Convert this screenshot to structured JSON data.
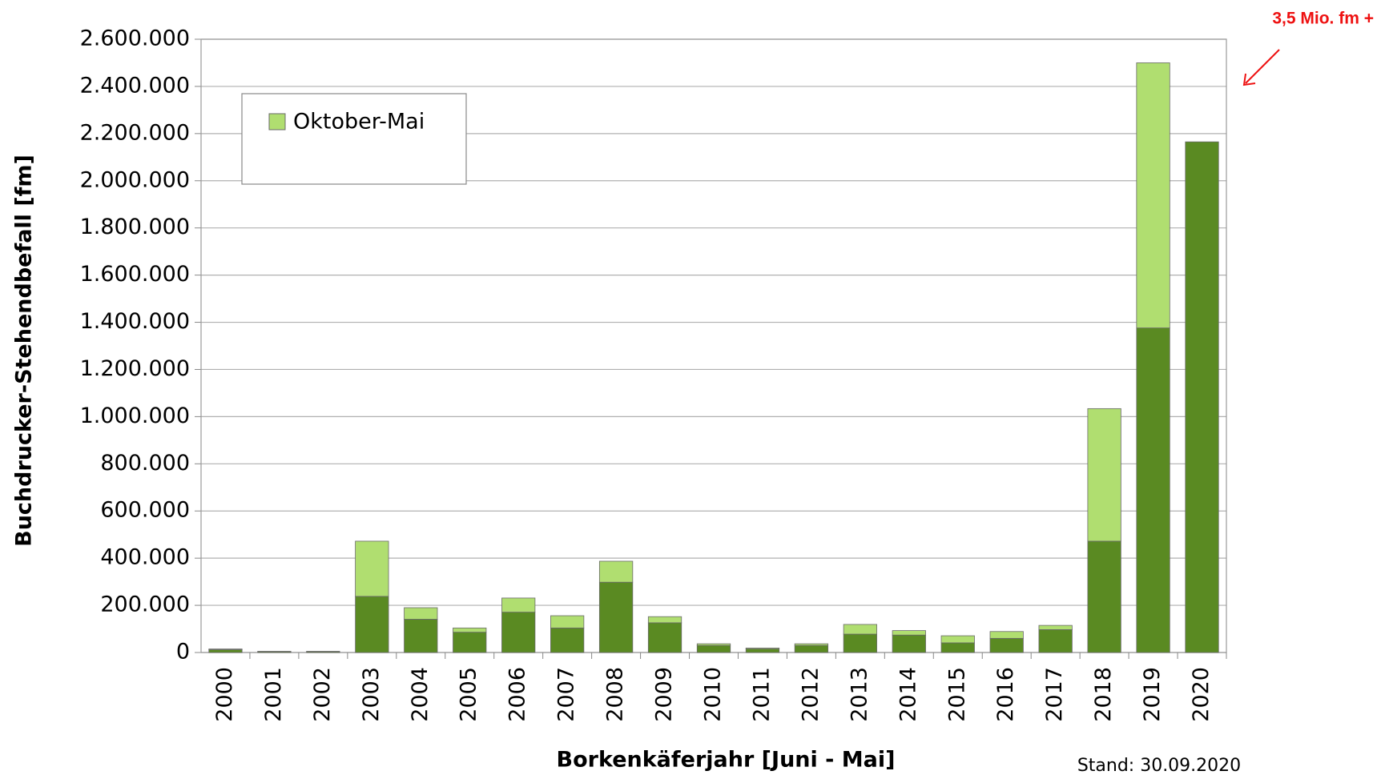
{
  "chart_data": {
    "type": "stacked_bar",
    "annotation": "3,5 Mio. fm +",
    "note": "Stand: 30.09.2020",
    "x_label": "Borkenkäferjahr [Juni - Mai]",
    "y_label": "Buchdrucker-Stehendbefall [fm]",
    "categories": [
      "2000",
      "2001",
      "2002",
      "2003",
      "2004",
      "2005",
      "2006",
      "2007",
      "2008",
      "2009",
      "2010",
      "2011",
      "2012",
      "2013",
      "2014",
      "2015",
      "2016",
      "2017",
      "2018",
      "2019",
      "2020"
    ],
    "series": [
      {
        "color": "#5a8a22",
        "values": [
          12000,
          4000,
          4000,
          238000,
          141000,
          86000,
          171000,
          104000,
          298000,
          126000,
          30000,
          15000,
          30000,
          78000,
          74000,
          41000,
          60000,
          97000,
          472000,
          1376000,
          2165000
        ]
      },
      {
        "name": "Oktober-Mai",
        "color": "#b0de70",
        "values": [
          3000,
          1000,
          1000,
          234000,
          49000,
          18000,
          60000,
          52000,
          89000,
          26000,
          7000,
          4000,
          7000,
          41000,
          19000,
          30000,
          29000,
          18000,
          562000,
          1124000,
          0
        ]
      }
    ],
    "ylim": [
      0,
      2600000
    ],
    "yticks": [
      0,
      {
        "value": 200000,
        "label": "200.000"
      },
      {
        "value": 400000,
        "label": "400.000"
      },
      {
        "value": 600000,
        "label": "600.000"
      },
      {
        "value": 800000,
        "label": "800.000"
      },
      {
        "value": 1000000,
        "label": "1.000.000"
      },
      {
        "value": 1200000,
        "label": "1.200.000"
      },
      {
        "value": 1400000,
        "label": "1.400.000"
      },
      {
        "value": 1600000,
        "label": "1.600.000"
      },
      {
        "value": 1800000,
        "label": "1.800.000"
      },
      {
        "value": 2000000,
        "label": "2.000.000"
      },
      {
        "value": 2200000,
        "label": "2.200.000"
      },
      {
        "value": 2400000,
        "label": "2.400.000"
      },
      {
        "value": 2600000,
        "label": "2.600.000"
      }
    ],
    "grid": true
  }
}
